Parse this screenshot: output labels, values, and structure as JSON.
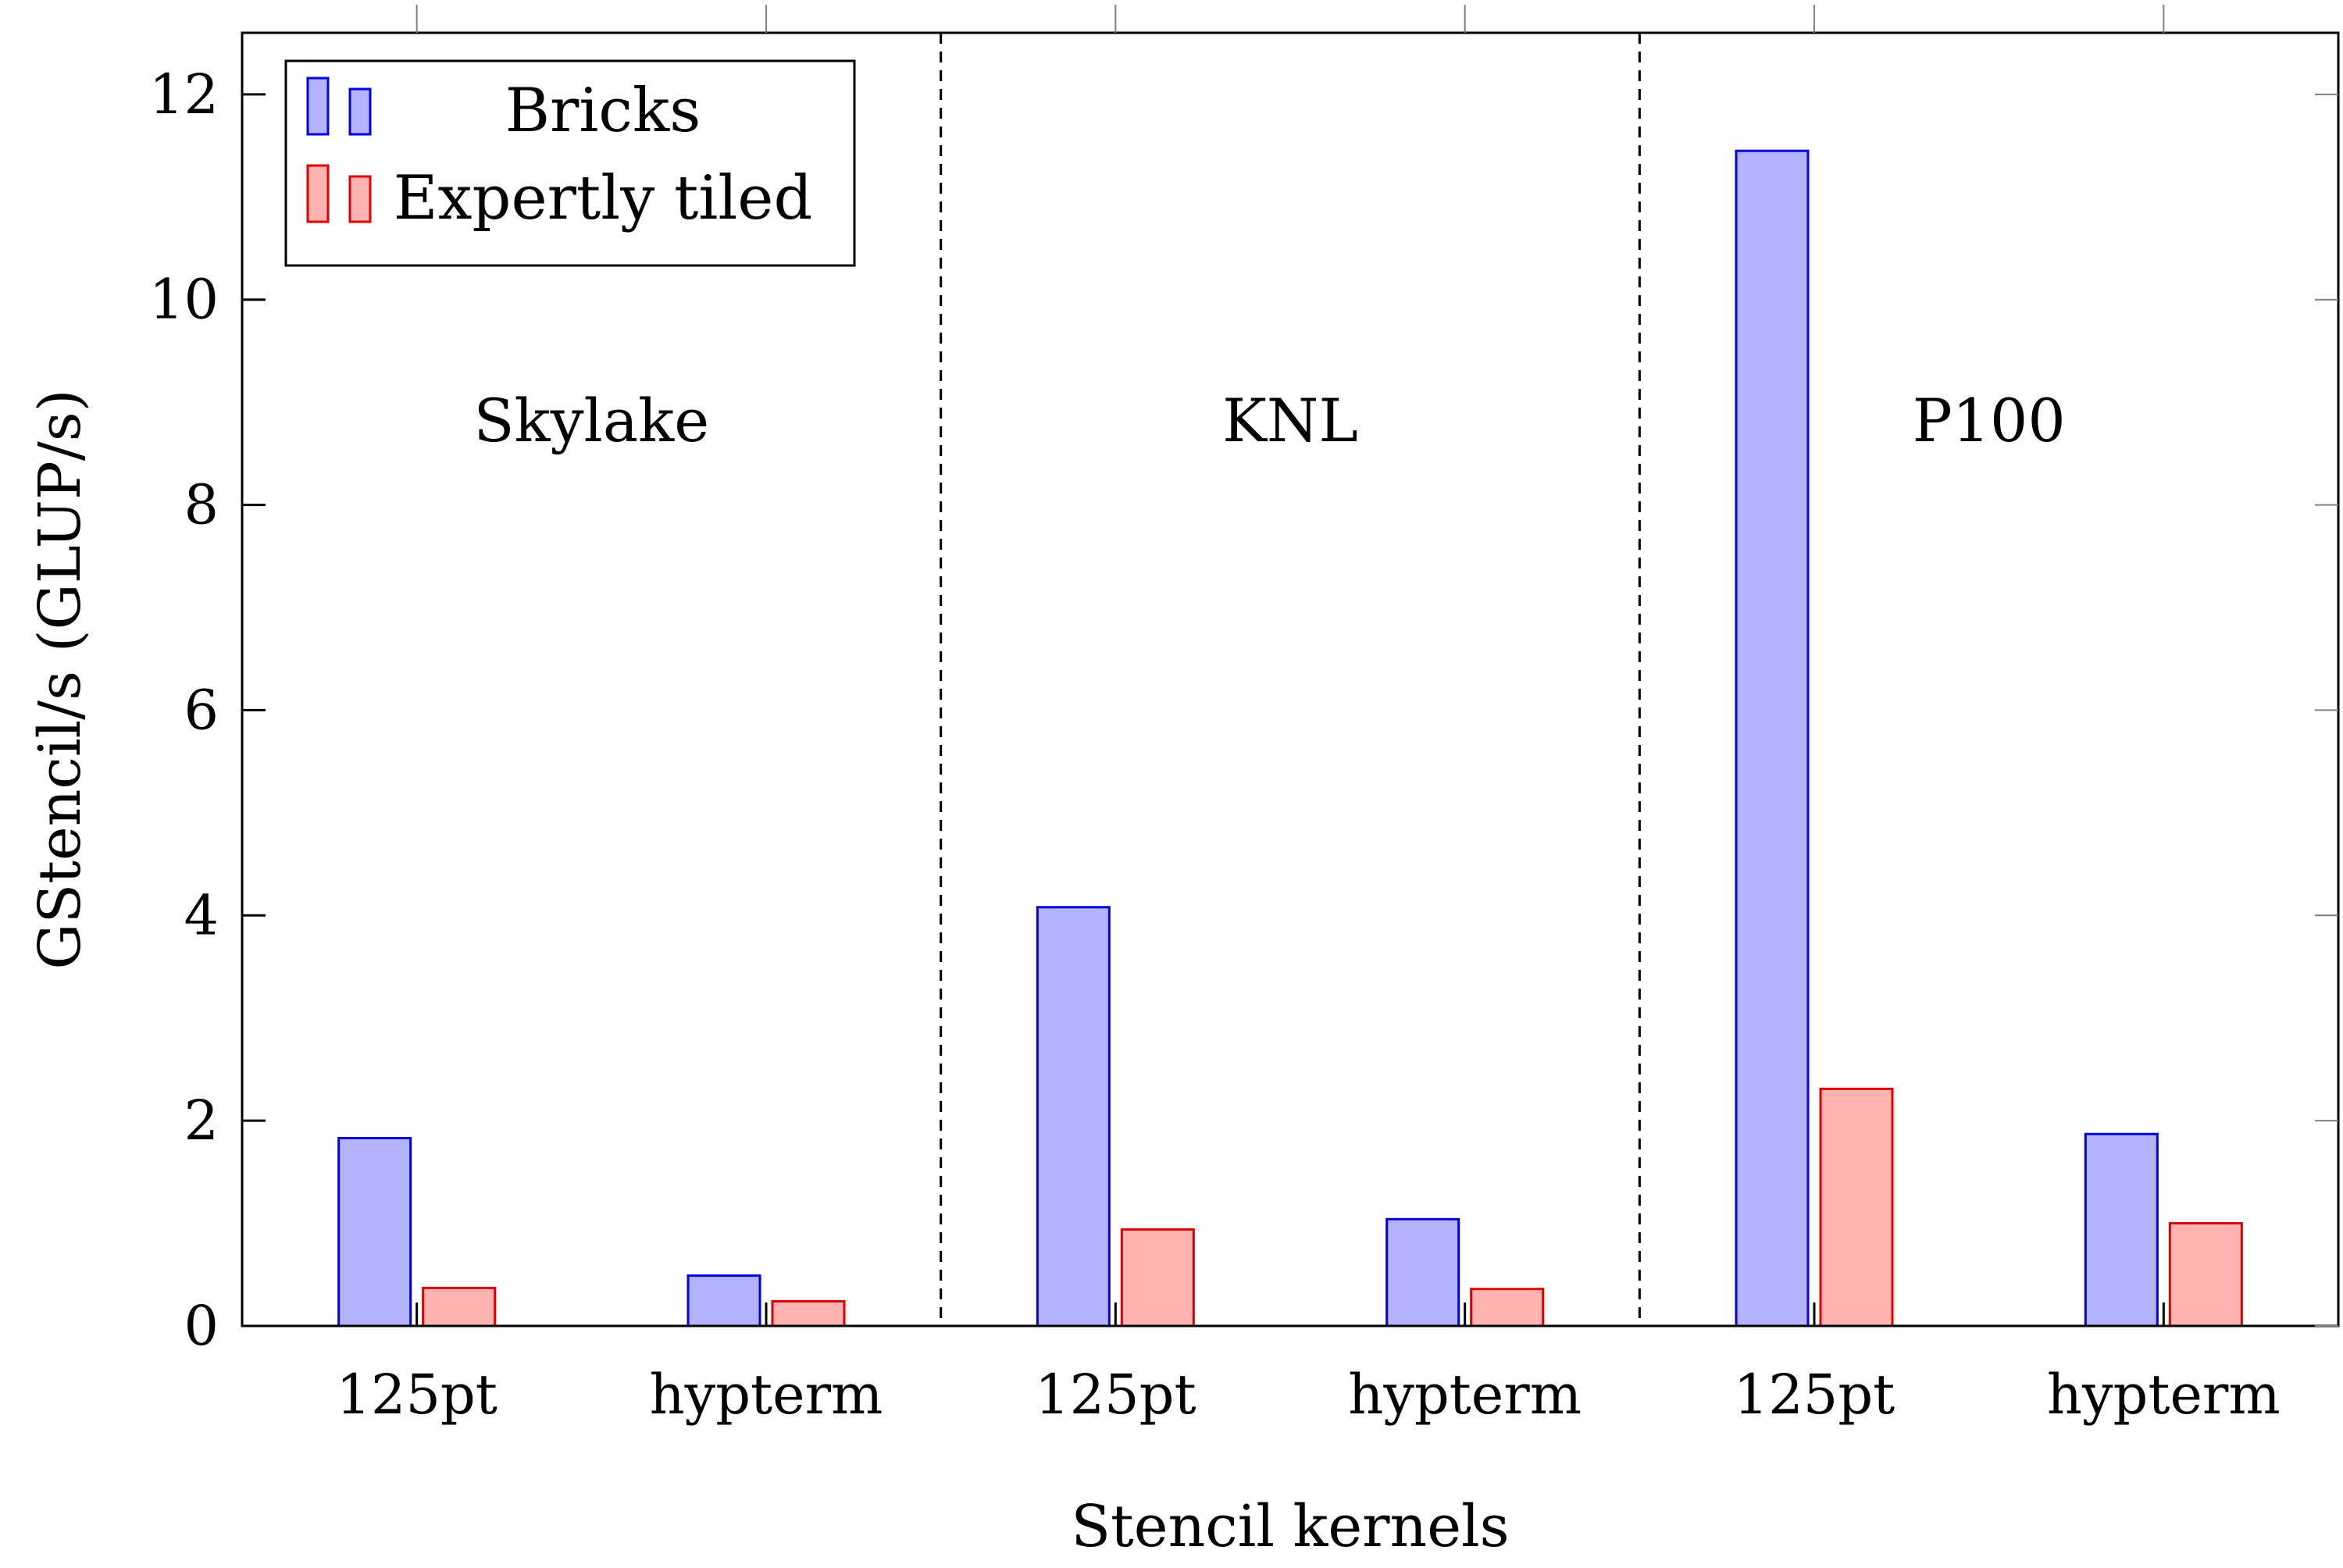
{
  "chart_data": {
    "type": "bar",
    "xlabel": "Stencil kernels",
    "ylabel": "GStencil/s (GLUP/s)",
    "ylim": [
      0,
      12.6
    ],
    "yticks": [
      0,
      2,
      4,
      6,
      8,
      10,
      12
    ],
    "grid": false,
    "legend_position": "top-left",
    "categories": [
      "125pt",
      "hypterm",
      "125pt",
      "hypterm",
      "125pt",
      "hypterm"
    ],
    "groups": [
      {
        "label": "Skylake",
        "categories": [
          0,
          1
        ]
      },
      {
        "label": "KNL",
        "categories": [
          2,
          3
        ]
      },
      {
        "label": "P100",
        "categories": [
          4,
          5
        ]
      }
    ],
    "series": [
      {
        "name": "Bricks",
        "values": [
          1.83,
          0.49,
          4.08,
          1.04,
          11.45,
          1.87
        ],
        "fill": "#b3b3ff",
        "stroke": "#0000e0"
      },
      {
        "name": "Expertly tiled",
        "values": [
          0.37,
          0.24,
          0.94,
          0.36,
          2.31,
          1.0
        ],
        "fill": "#ffb3b3",
        "stroke": "#e00000"
      }
    ]
  }
}
